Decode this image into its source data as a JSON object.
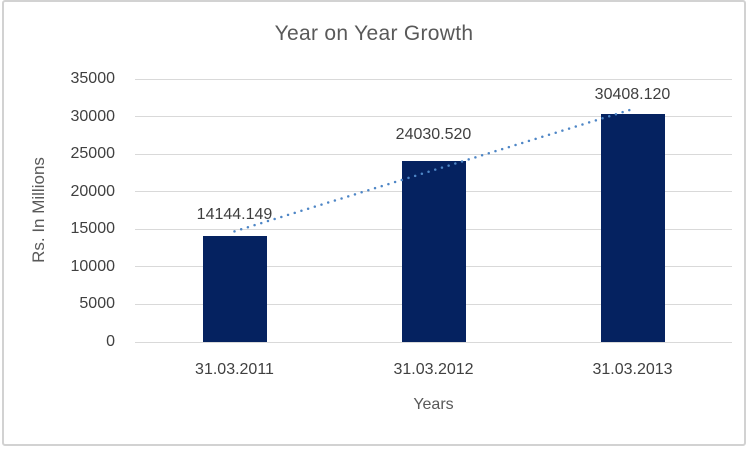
{
  "chart_data": {
    "type": "bar",
    "title": "Year on Year Growth",
    "xlabel": "Years",
    "ylabel": "Rs. In Millions",
    "categories": [
      "31.03.2011",
      "31.03.2012",
      "31.03.2013"
    ],
    "values": [
      14144.149,
      24030.52,
      30408.12
    ],
    "data_labels": [
      "14144.149",
      "24030.520",
      "30408.120"
    ],
    "ylim": [
      0,
      35000
    ],
    "ytick_step": 5000,
    "grid": true,
    "legend": "none",
    "trendline": {
      "type": "linear",
      "style": "dotted"
    },
    "colors": {
      "bar": "#052260",
      "trendline": "#4e86c6",
      "gridline": "#d9d9d9",
      "title_text": "#595959",
      "axis_title_text": "#595959",
      "tick_text": "#404040",
      "data_label_text": "#3f3f3f",
      "frame_border": "#d2d2d2"
    }
  }
}
